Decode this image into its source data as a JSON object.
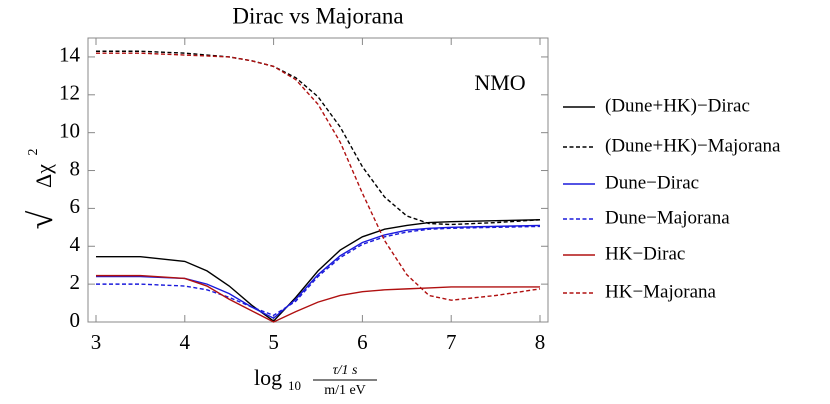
{
  "chart_data": {
    "type": "line",
    "title": "Dirac vs Majorana",
    "x_label": {
      "base": "log",
      "sub": "10",
      "numerator": "τ/1 s",
      "denominator": "m/1 eV"
    },
    "y_label": {
      "radical": "√",
      "text": "Δχ",
      "sup": "2"
    },
    "annotation": "NMO",
    "x": [
      3,
      3.5,
      4,
      4.25,
      4.5,
      4.75,
      5,
      5.25,
      5.5,
      5.75,
      6,
      6.25,
      6.5,
      6.75,
      7,
      7.5,
      8
    ],
    "series": [
      {
        "name": "(Dune+HK)−Dirac",
        "color": "#000000",
        "dashed": false,
        "values": [
          3.45,
          3.45,
          3.2,
          2.7,
          1.9,
          0.9,
          0.05,
          1.3,
          2.7,
          3.8,
          4.5,
          4.9,
          5.1,
          5.25,
          5.3,
          5.35,
          5.4
        ]
      },
      {
        "name": "(Dune+HK)−Majorana",
        "color": "#000000",
        "dashed": true,
        "values": [
          14.3,
          14.3,
          14.2,
          14.1,
          14.0,
          13.8,
          13.5,
          12.9,
          11.9,
          10.3,
          8.2,
          6.6,
          5.6,
          5.2,
          5.15,
          5.25,
          5.4
        ]
      },
      {
        "name": "Dune−Dirac",
        "color": "#1a1adb",
        "dashed": false,
        "values": [
          2.4,
          2.4,
          2.3,
          2.0,
          1.5,
          0.8,
          0.2,
          1.2,
          2.5,
          3.5,
          4.2,
          4.6,
          4.85,
          4.95,
          5.0,
          5.05,
          5.1
        ]
      },
      {
        "name": "Dune−Majorana",
        "color": "#1a1adb",
        "dashed": true,
        "values": [
          2.0,
          2.0,
          1.9,
          1.7,
          1.3,
          0.8,
          0.35,
          1.1,
          2.4,
          3.4,
          4.1,
          4.5,
          4.75,
          4.9,
          4.95,
          5.0,
          5.05
        ]
      },
      {
        "name": "HK−Dirac",
        "color": "#b01010",
        "dashed": false,
        "values": [
          2.45,
          2.45,
          2.3,
          1.9,
          1.2,
          0.6,
          0,
          0.55,
          1.05,
          1.4,
          1.6,
          1.7,
          1.75,
          1.8,
          1.85,
          1.85,
          1.85
        ]
      },
      {
        "name": "HK−Majorana",
        "color": "#b01010",
        "dashed": true,
        "values": [
          14.2,
          14.2,
          14.1,
          14.05,
          14.0,
          13.8,
          13.5,
          12.8,
          11.5,
          9.5,
          6.8,
          4.3,
          2.5,
          1.4,
          1.15,
          1.4,
          1.75
        ]
      }
    ],
    "xlim": [
      2.91,
      8.09
    ],
    "ylim": [
      0,
      15
    ],
    "xticks": [
      3,
      4,
      5,
      6,
      7,
      8
    ],
    "yticks": [
      0,
      2,
      4,
      6,
      8,
      10,
      12,
      14
    ]
  }
}
